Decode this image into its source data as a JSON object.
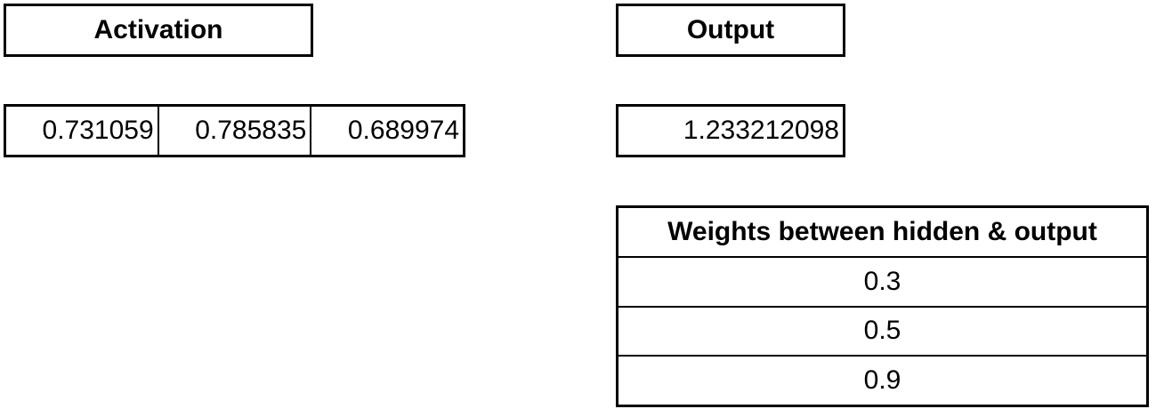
{
  "activation": {
    "header": "Activation",
    "values": [
      "0.731059",
      "0.785835",
      "0.689974"
    ]
  },
  "output": {
    "header": "Output",
    "value": "1.233212098"
  },
  "weights": {
    "header": "Weights between hidden & output",
    "values": [
      "0.3",
      "0.5",
      "0.9"
    ]
  }
}
